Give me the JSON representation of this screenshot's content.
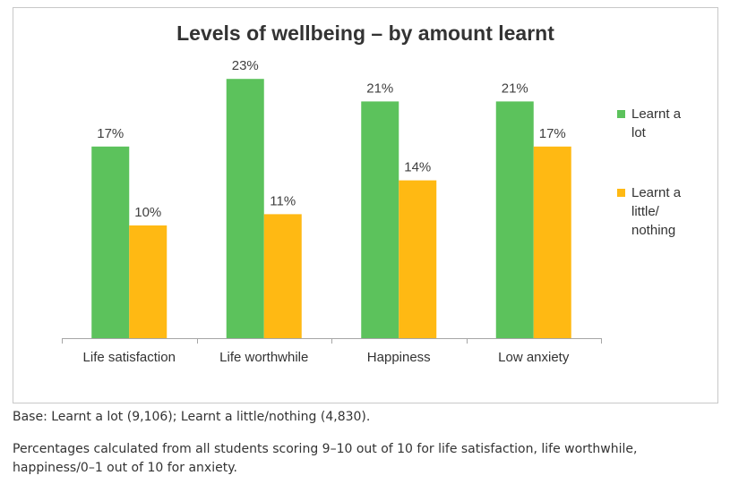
{
  "chart_data": {
    "type": "bar",
    "title": "Levels of wellbeing – by amount learnt",
    "categories": [
      "Life satisfaction",
      "Life worthwhile",
      "Happiness",
      "Low anxiety"
    ],
    "series": [
      {
        "name": "Learnt a lot",
        "legend_lines": [
          "Learnt a",
          "lot"
        ],
        "color": "#5cc25c",
        "values": [
          17,
          23,
          21,
          21
        ],
        "labels": [
          "17%",
          "23%",
          "21%",
          "21%"
        ]
      },
      {
        "name": "Learnt a little/ nothing",
        "legend_lines": [
          "Learnt a",
          "little/",
          "nothing"
        ],
        "color": "#ffb913",
        "values": [
          10,
          11,
          14,
          17
        ],
        "labels": [
          "10%",
          "11%",
          "14%",
          "17%"
        ]
      }
    ],
    "unit": "%",
    "ylim": [
      0,
      25
    ],
    "grid": false,
    "legend_position": "right"
  },
  "notes": {
    "base": "Base: Learnt a lot (9,106); Learnt a little/nothing (4,830).",
    "percentages": "Percentages calculated from all students scoring 9–10 out of 10 for life satisfaction, life worthwhile, happiness/0–1 out of 10 for anxiety."
  }
}
